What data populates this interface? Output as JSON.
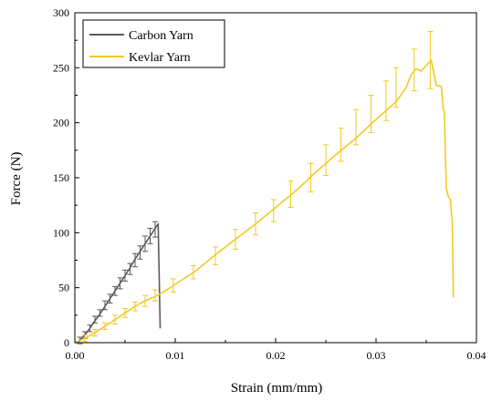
{
  "chart_data": {
    "type": "line",
    "title": "",
    "xlabel": "Strain (mm/mm)",
    "ylabel": "Force (N)",
    "xlim": [
      0,
      0.04
    ],
    "ylim": [
      0,
      300
    ],
    "xticks": [
      "0.00",
      "0.01",
      "0.02",
      "0.03",
      "0.04"
    ],
    "yticks": [
      "0",
      "50",
      "100",
      "150",
      "200",
      "250",
      "300"
    ],
    "legend_position": "top-left",
    "series": [
      {
        "name": "Carbon Yarn",
        "color": "#5a5a5a",
        "points": [
          [
            0.0,
            0
          ],
          [
            0.0005,
            2
          ],
          [
            0.001,
            7
          ],
          [
            0.0015,
            13
          ],
          [
            0.002,
            20
          ],
          [
            0.0025,
            26
          ],
          [
            0.003,
            33
          ],
          [
            0.0035,
            40
          ],
          [
            0.004,
            47
          ],
          [
            0.0045,
            54
          ],
          [
            0.005,
            61
          ],
          [
            0.0055,
            68
          ],
          [
            0.006,
            76
          ],
          [
            0.0065,
            83
          ],
          [
            0.007,
            90
          ],
          [
            0.0075,
            97
          ],
          [
            0.008,
            104
          ],
          [
            0.0083,
            108
          ],
          [
            0.0085,
            13
          ]
        ],
        "errorbars": [
          [
            0.0005,
            2,
            3
          ],
          [
            0.001,
            7,
            3
          ],
          [
            0.0015,
            13,
            3
          ],
          [
            0.002,
            21,
            3
          ],
          [
            0.0025,
            27,
            3
          ],
          [
            0.003,
            34,
            4
          ],
          [
            0.0035,
            40,
            4
          ],
          [
            0.004,
            47,
            4
          ],
          [
            0.0045,
            54,
            5
          ],
          [
            0.005,
            61,
            5
          ],
          [
            0.0055,
            67,
            5
          ],
          [
            0.006,
            75,
            6
          ],
          [
            0.0065,
            82,
            6
          ],
          [
            0.007,
            90,
            7
          ],
          [
            0.0075,
            97,
            7
          ],
          [
            0.008,
            103,
            7
          ]
        ]
      },
      {
        "name": "Kevlar Yarn",
        "color": "#f2c923",
        "points": [
          [
            0.0,
            0
          ],
          [
            0.001,
            4
          ],
          [
            0.002,
            9
          ],
          [
            0.003,
            15
          ],
          [
            0.004,
            21
          ],
          [
            0.005,
            27
          ],
          [
            0.006,
            33
          ],
          [
            0.007,
            38
          ],
          [
            0.008,
            42
          ],
          [
            0.009,
            47
          ],
          [
            0.01,
            53
          ],
          [
            0.012,
            65
          ],
          [
            0.014,
            80
          ],
          [
            0.016,
            94
          ],
          [
            0.018,
            108
          ],
          [
            0.02,
            123
          ],
          [
            0.022,
            138
          ],
          [
            0.024,
            155
          ],
          [
            0.026,
            171
          ],
          [
            0.028,
            186
          ],
          [
            0.03,
            203
          ],
          [
            0.032,
            219
          ],
          [
            0.033,
            232
          ],
          [
            0.0335,
            244
          ],
          [
            0.034,
            249
          ],
          [
            0.0345,
            247
          ],
          [
            0.035,
            252
          ],
          [
            0.0355,
            257
          ],
          [
            0.036,
            234
          ],
          [
            0.0365,
            233
          ],
          [
            0.0367,
            212
          ],
          [
            0.0368,
            211
          ],
          [
            0.0369,
            175
          ],
          [
            0.037,
            140
          ],
          [
            0.0372,
            133
          ],
          [
            0.0374,
            130
          ],
          [
            0.0375,
            119
          ],
          [
            0.0376,
            110
          ],
          [
            0.0377,
            41
          ]
        ],
        "errorbars": [
          [
            0.001,
            4,
            3
          ],
          [
            0.002,
            9,
            3
          ],
          [
            0.003,
            15,
            3
          ],
          [
            0.004,
            21,
            4
          ],
          [
            0.005,
            27,
            4
          ],
          [
            0.006,
            33,
            4
          ],
          [
            0.007,
            38,
            5
          ],
          [
            0.008,
            43,
            5
          ],
          [
            0.0098,
            52,
            6
          ],
          [
            0.0118,
            64,
            6
          ],
          [
            0.014,
            79,
            8
          ],
          [
            0.016,
            94,
            9
          ],
          [
            0.018,
            108,
            10
          ],
          [
            0.0198,
            120,
            10
          ],
          [
            0.0215,
            135,
            12
          ],
          [
            0.0235,
            150,
            13
          ],
          [
            0.025,
            166,
            14
          ],
          [
            0.0265,
            180,
            15
          ],
          [
            0.028,
            196,
            16
          ],
          [
            0.0295,
            208,
            17
          ],
          [
            0.031,
            220,
            18
          ],
          [
            0.032,
            232,
            18
          ],
          [
            0.0338,
            248,
            19
          ],
          [
            0.0354,
            257,
            26
          ]
        ]
      }
    ]
  }
}
